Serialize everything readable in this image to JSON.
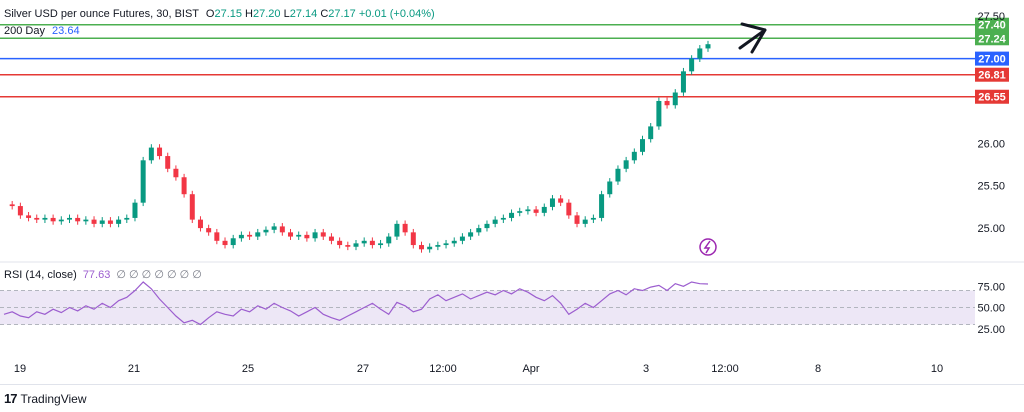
{
  "header": {
    "symbol": "Silver USD per ounce Futures, 30, BIST",
    "open_label": "O",
    "open": "27.15",
    "high_label": "H",
    "high": "27.20",
    "low_label": "L",
    "low": "27.14",
    "close_label": "C",
    "close": "27.17",
    "change": "+0.01 (+0.04%)",
    "ma_label": "200 Day",
    "ma_value": "23.64"
  },
  "rsi": {
    "label": "RSI (14, close)",
    "value": "77.63",
    "extras": "∅ ∅ ∅ ∅ ∅ ∅ ∅",
    "ticks": [
      "75.00",
      "50.00",
      "25.00"
    ]
  },
  "footer": {
    "brand": "TradingView"
  },
  "colors": {
    "up": "#089981",
    "down": "#f23645",
    "green_line": "#4caf50",
    "blue_line": "#2962ff",
    "red_line": "#e53935",
    "rsi": "#9c5ecf",
    "rsi_band": "#ede7f6",
    "text": "#131722"
  },
  "chart_data": {
    "type": "candlestick",
    "price_ticks": [
      27.5,
      26.0,
      25.5,
      25.0
    ],
    "ylim": [
      24.6,
      27.55
    ],
    "x_ticks": [
      "19",
      "21",
      "25",
      "27",
      "12:00",
      "Apr",
      "3",
      "12:00",
      "8",
      "10"
    ],
    "levels": [
      {
        "value": 27.4,
        "label": "27.40",
        "color": "green"
      },
      {
        "value": 27.24,
        "label": "27.24",
        "color": "green"
      },
      {
        "value": 27.0,
        "label": "27.00",
        "color": "blue"
      },
      {
        "value": 26.81,
        "label": "26.81",
        "color": "red"
      },
      {
        "value": 26.55,
        "label": "26.55",
        "color": "red"
      }
    ],
    "candles": [],
    "price_path": [
      [
        25.28,
        0
      ],
      [
        25.26,
        1
      ],
      [
        25.15,
        2
      ],
      [
        25.12,
        3
      ],
      [
        25.1,
        4
      ],
      [
        25.12,
        5
      ],
      [
        25.08,
        6
      ],
      [
        25.1,
        7
      ],
      [
        25.12,
        8
      ],
      [
        25.08,
        9
      ],
      [
        25.1,
        10
      ],
      [
        25.05,
        11
      ],
      [
        25.09,
        12
      ],
      [
        25.05,
        13
      ],
      [
        25.1,
        14
      ],
      [
        25.12,
        15
      ],
      [
        25.3,
        16
      ],
      [
        25.8,
        17
      ],
      [
        25.95,
        18
      ],
      [
        25.85,
        19
      ],
      [
        25.7,
        20
      ],
      [
        25.6,
        21
      ],
      [
        25.4,
        22
      ],
      [
        25.1,
        23
      ],
      [
        25.0,
        24
      ],
      [
        24.95,
        25
      ],
      [
        24.85,
        26
      ],
      [
        24.8,
        27
      ],
      [
        24.88,
        28
      ],
      [
        24.92,
        29
      ],
      [
        24.9,
        30
      ],
      [
        24.95,
        31
      ],
      [
        24.98,
        32
      ],
      [
        25.02,
        33
      ],
      [
        24.95,
        34
      ],
      [
        24.9,
        35
      ],
      [
        24.92,
        36
      ],
      [
        24.88,
        37
      ],
      [
        24.95,
        38
      ],
      [
        24.9,
        39
      ],
      [
        24.85,
        40
      ],
      [
        24.8,
        41
      ],
      [
        24.78,
        42
      ],
      [
        24.82,
        43
      ],
      [
        24.85,
        44
      ],
      [
        24.8,
        45
      ],
      [
        24.82,
        46
      ],
      [
        24.9,
        47
      ],
      [
        25.05,
        48
      ],
      [
        24.95,
        49
      ],
      [
        24.8,
        50
      ],
      [
        24.75,
        51
      ],
      [
        24.78,
        52
      ],
      [
        24.8,
        53
      ],
      [
        24.82,
        54
      ],
      [
        24.85,
        55
      ],
      [
        24.9,
        56
      ],
      [
        24.95,
        57
      ],
      [
        25.0,
        58
      ],
      [
        25.05,
        59
      ],
      [
        25.1,
        60
      ],
      [
        25.12,
        61
      ],
      [
        25.18,
        62
      ],
      [
        25.2,
        63
      ],
      [
        25.22,
        64
      ],
      [
        25.18,
        65
      ],
      [
        25.25,
        66
      ],
      [
        25.35,
        67
      ],
      [
        25.3,
        68
      ],
      [
        25.15,
        69
      ],
      [
        25.05,
        70
      ],
      [
        25.1,
        71
      ],
      [
        25.12,
        72
      ],
      [
        25.4,
        73
      ],
      [
        25.55,
        74
      ],
      [
        25.7,
        75
      ],
      [
        25.8,
        76
      ],
      [
        25.9,
        77
      ],
      [
        26.05,
        78
      ],
      [
        26.2,
        79
      ],
      [
        26.5,
        80
      ],
      [
        26.45,
        81
      ],
      [
        26.6,
        82
      ],
      [
        26.85,
        83
      ],
      [
        27.0,
        84
      ],
      [
        27.12,
        85
      ],
      [
        27.17,
        86
      ]
    ],
    "rsi_path": [
      [
        42,
        0
      ],
      [
        45,
        1
      ],
      [
        40,
        2
      ],
      [
        38,
        3
      ],
      [
        45,
        4
      ],
      [
        42,
        5
      ],
      [
        48,
        6
      ],
      [
        44,
        7
      ],
      [
        50,
        8
      ],
      [
        46,
        9
      ],
      [
        52,
        10
      ],
      [
        48,
        11
      ],
      [
        55,
        12
      ],
      [
        50,
        13
      ],
      [
        58,
        14
      ],
      [
        62,
        15
      ],
      [
        70,
        16
      ],
      [
        80,
        17
      ],
      [
        72,
        18
      ],
      [
        60,
        19
      ],
      [
        50,
        20
      ],
      [
        40,
        21
      ],
      [
        32,
        22
      ],
      [
        35,
        23
      ],
      [
        30,
        24
      ],
      [
        38,
        25
      ],
      [
        45,
        26
      ],
      [
        42,
        27
      ],
      [
        40,
        28
      ],
      [
        48,
        29
      ],
      [
        45,
        30
      ],
      [
        52,
        31
      ],
      [
        48,
        32
      ],
      [
        55,
        33
      ],
      [
        50,
        34
      ],
      [
        46,
        35
      ],
      [
        40,
        36
      ],
      [
        45,
        37
      ],
      [
        50,
        38
      ],
      [
        42,
        39
      ],
      [
        38,
        40
      ],
      [
        35,
        41
      ],
      [
        40,
        42
      ],
      [
        45,
        43
      ],
      [
        50,
        44
      ],
      [
        55,
        45
      ],
      [
        48,
        46
      ],
      [
        42,
        47
      ],
      [
        56,
        48
      ],
      [
        52,
        49
      ],
      [
        45,
        50
      ],
      [
        48,
        51
      ],
      [
        60,
        52
      ],
      [
        65,
        53
      ],
      [
        58,
        54
      ],
      [
        62,
        55
      ],
      [
        66,
        56
      ],
      [
        60,
        57
      ],
      [
        64,
        58
      ],
      [
        68,
        59
      ],
      [
        65,
        60
      ],
      [
        70,
        61
      ],
      [
        66,
        62
      ],
      [
        72,
        63
      ],
      [
        68,
        64
      ],
      [
        62,
        65
      ],
      [
        58,
        66
      ],
      [
        64,
        67
      ],
      [
        55,
        68
      ],
      [
        42,
        69
      ],
      [
        48,
        70
      ],
      [
        55,
        71
      ],
      [
        50,
        72
      ],
      [
        58,
        73
      ],
      [
        66,
        74
      ],
      [
        70,
        75
      ],
      [
        65,
        76
      ],
      [
        72,
        77
      ],
      [
        70,
        78
      ],
      [
        74,
        79
      ],
      [
        76,
        80
      ],
      [
        70,
        81
      ],
      [
        78,
        82
      ],
      [
        75,
        83
      ],
      [
        80,
        84
      ],
      [
        78,
        85
      ],
      [
        77.63,
        86
      ]
    ]
  }
}
